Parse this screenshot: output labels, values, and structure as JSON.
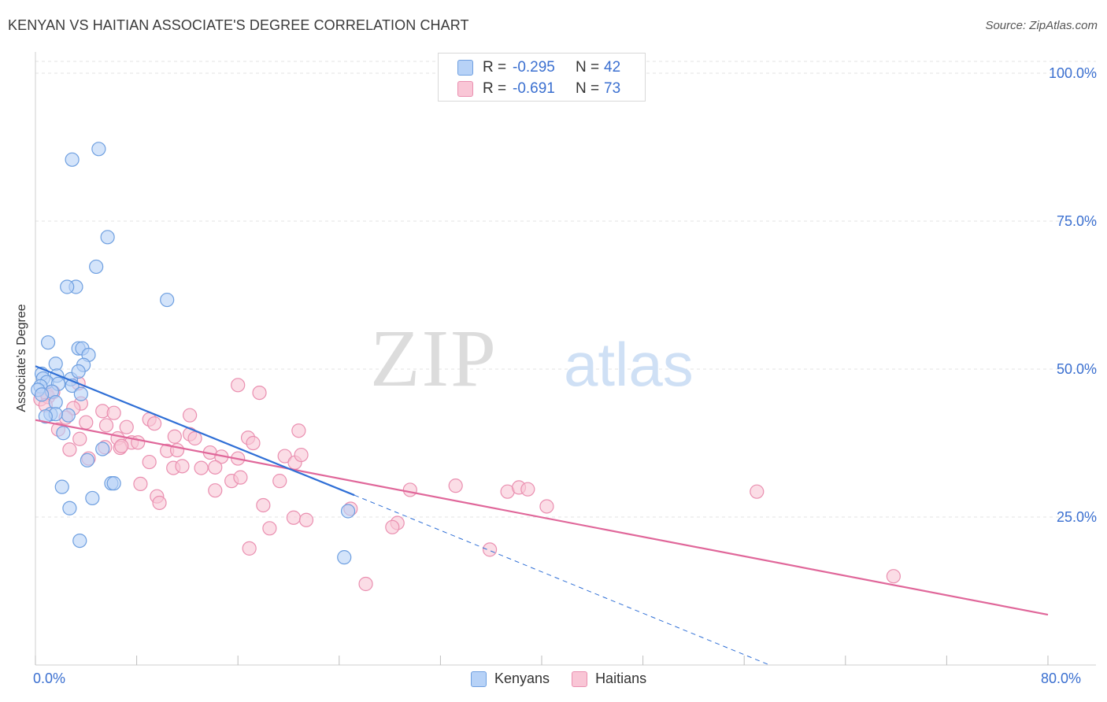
{
  "title": "KENYAN VS HAITIAN ASSOCIATE'S DEGREE CORRELATION CHART",
  "source": "Source: ZipAtlas.com",
  "watermark": {
    "zip": "ZIP",
    "atlas": "atlas"
  },
  "legend": {
    "rows": [
      {
        "r_label": "R =",
        "r_value": "-0.295",
        "n_label": "N =",
        "n_value": "42"
      },
      {
        "r_label": "R =",
        "r_value": "-0.691",
        "n_label": "N =",
        "n_value": "73"
      }
    ]
  },
  "bottom_legend": {
    "kenyans": "Kenyans",
    "haitians": "Haitians"
  },
  "colors": {
    "kenyans_fill": "#b7d2f7",
    "kenyans_stroke": "#6e9fe0",
    "kenyans_line": "#2f6fd6",
    "haitians_fill": "#f9c6d6",
    "haitians_stroke": "#ea8fb0",
    "haitians_line": "#e0679a",
    "tick_text": "#3a6fd0",
    "grid": "#e3e3e3"
  },
  "chart_data": {
    "type": "scatter",
    "title": "KENYAN VS HAITIAN ASSOCIATE'S DEGREE CORRELATION CHART",
    "xlabel": "",
    "ylabel": "Associate's Degree",
    "xlim": [
      0,
      80
    ],
    "ylim": [
      0,
      102
    ],
    "x_tick_labels": [
      "0.0%",
      "80.0%"
    ],
    "y_ticks": [
      25,
      50,
      75,
      100
    ],
    "y_tick_labels": [
      "25.0%",
      "50.0%",
      "75.0%",
      "100.0%"
    ],
    "grid": true,
    "series": [
      {
        "name": "Kenyans",
        "r": -0.295,
        "n": 42,
        "trend": {
          "x0": 0,
          "y0": 50.5,
          "x1": 25.2,
          "y1": 28.7,
          "dashed_to_x": 58,
          "dashed_to_y": 0
        },
        "points": [
          [
            5.0,
            87.2
          ],
          [
            2.9,
            85.4
          ],
          [
            5.7,
            72.3
          ],
          [
            4.8,
            67.3
          ],
          [
            3.2,
            63.9
          ],
          [
            2.5,
            63.9
          ],
          [
            10.4,
            61.7
          ],
          [
            1.0,
            54.5
          ],
          [
            3.4,
            53.5
          ],
          [
            3.7,
            53.5
          ],
          [
            4.2,
            52.4
          ],
          [
            1.6,
            50.9
          ],
          [
            3.8,
            50.7
          ],
          [
            0.5,
            49.2
          ],
          [
            0.6,
            48.4
          ],
          [
            2.8,
            48.3
          ],
          [
            3.4,
            49.6
          ],
          [
            1.7,
            48.9
          ],
          [
            0.9,
            47.8
          ],
          [
            0.4,
            47.1
          ],
          [
            0.2,
            46.5
          ],
          [
            1.8,
            47.5
          ],
          [
            2.9,
            47.2
          ],
          [
            3.6,
            45.8
          ],
          [
            1.3,
            46.2
          ],
          [
            0.5,
            45.7
          ],
          [
            1.6,
            44.4
          ],
          [
            2.6,
            42.2
          ],
          [
            1.2,
            42.4
          ],
          [
            1.6,
            42.4
          ],
          [
            0.8,
            42.0
          ],
          [
            2.2,
            39.2
          ],
          [
            5.3,
            36.5
          ],
          [
            4.1,
            34.6
          ],
          [
            2.1,
            30.1
          ],
          [
            6.0,
            30.7
          ],
          [
            6.2,
            30.7
          ],
          [
            4.5,
            28.2
          ],
          [
            2.7,
            26.5
          ],
          [
            3.5,
            21.0
          ],
          [
            24.7,
            26.0
          ],
          [
            24.4,
            18.2
          ]
        ]
      },
      {
        "name": "Haitians",
        "r": -0.691,
        "n": 73,
        "trend": {
          "x0": 0,
          "y0": 41.4,
          "x1": 80,
          "y1": 8.5
        },
        "points": [
          [
            0.4,
            44.9
          ],
          [
            0.9,
            45.8
          ],
          [
            1.0,
            45.3
          ],
          [
            1.4,
            46.1
          ],
          [
            0.8,
            43.9
          ],
          [
            3.4,
            47.6
          ],
          [
            16.0,
            47.3
          ],
          [
            17.7,
            46.0
          ],
          [
            3.6,
            44.2
          ],
          [
            3.0,
            43.4
          ],
          [
            2.4,
            41.8
          ],
          [
            5.3,
            42.9
          ],
          [
            6.2,
            42.6
          ],
          [
            9.0,
            41.5
          ],
          [
            9.4,
            40.8
          ],
          [
            12.2,
            42.2
          ],
          [
            4.0,
            41.0
          ],
          [
            5.6,
            40.5
          ],
          [
            7.2,
            40.2
          ],
          [
            1.8,
            39.8
          ],
          [
            11.0,
            38.6
          ],
          [
            12.2,
            39.0
          ],
          [
            12.6,
            38.3
          ],
          [
            3.5,
            38.2
          ],
          [
            6.5,
            38.3
          ],
          [
            7.6,
            37.6
          ],
          [
            8.1,
            37.6
          ],
          [
            6.7,
            36.7
          ],
          [
            5.5,
            36.8
          ],
          [
            6.8,
            37.0
          ],
          [
            2.7,
            36.4
          ],
          [
            10.4,
            36.2
          ],
          [
            11.2,
            36.3
          ],
          [
            13.8,
            35.9
          ],
          [
            14.7,
            35.2
          ],
          [
            16.0,
            34.9
          ],
          [
            19.7,
            35.3
          ],
          [
            20.5,
            34.2
          ],
          [
            21.0,
            35.5
          ],
          [
            9.0,
            34.3
          ],
          [
            4.2,
            34.9
          ],
          [
            10.9,
            33.3
          ],
          [
            11.6,
            33.6
          ],
          [
            13.1,
            33.3
          ],
          [
            14.2,
            33.4
          ],
          [
            15.5,
            31.1
          ],
          [
            16.2,
            31.7
          ],
          [
            19.3,
            31.1
          ],
          [
            16.8,
            38.4
          ],
          [
            17.2,
            37.5
          ],
          [
            20.8,
            39.6
          ],
          [
            8.3,
            30.6
          ],
          [
            14.2,
            29.5
          ],
          [
            9.6,
            28.5
          ],
          [
            9.8,
            27.4
          ],
          [
            18.0,
            27.0
          ],
          [
            24.9,
            26.4
          ],
          [
            29.6,
            29.6
          ],
          [
            33.2,
            30.3
          ],
          [
            37.3,
            29.3
          ],
          [
            38.2,
            30.0
          ],
          [
            38.9,
            29.7
          ],
          [
            40.4,
            26.8
          ],
          [
            57.0,
            29.3
          ],
          [
            20.4,
            24.9
          ],
          [
            21.4,
            24.5
          ],
          [
            28.6,
            24.0
          ],
          [
            28.2,
            23.3
          ],
          [
            18.5,
            23.1
          ],
          [
            16.9,
            19.7
          ],
          [
            35.9,
            19.5
          ],
          [
            26.1,
            13.7
          ],
          [
            67.8,
            15.0
          ]
        ]
      }
    ]
  }
}
